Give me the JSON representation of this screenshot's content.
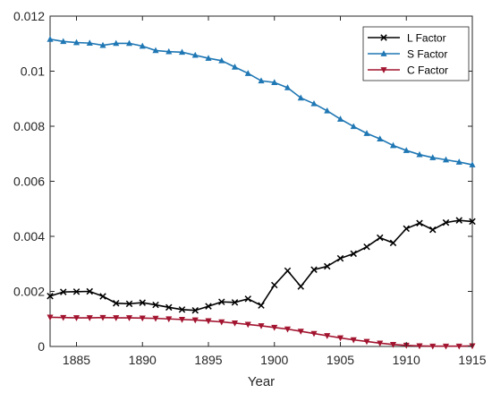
{
  "chart_data": {
    "type": "line",
    "title": "",
    "xlabel": "Year",
    "ylabel": "",
    "xlim": [
      1883,
      1915
    ],
    "ylim": [
      0,
      0.012
    ],
    "x_ticks": [
      1885,
      1890,
      1895,
      1900,
      1905,
      1910,
      1915
    ],
    "x_tick_labels": [
      "1885",
      "1890",
      "1895",
      "1900",
      "1905",
      "1910",
      "1915"
    ],
    "y_ticks": [
      0,
      0.002,
      0.004,
      0.006,
      0.008,
      0.01,
      0.012
    ],
    "y_tick_labels": [
      "0",
      "0.002",
      "0.004",
      "0.006",
      "0.008",
      "0.01",
      "0.012"
    ],
    "grid": false,
    "legend_position": "top-right",
    "x": [
      1883,
      1884,
      1885,
      1886,
      1887,
      1888,
      1889,
      1890,
      1891,
      1892,
      1893,
      1894,
      1895,
      1896,
      1897,
      1898,
      1899,
      1900,
      1901,
      1902,
      1903,
      1904,
      1905,
      1906,
      1907,
      1908,
      1909,
      1910,
      1911,
      1912,
      1913,
      1914,
      1915
    ],
    "series": [
      {
        "name": "L Factor",
        "color": "#000000",
        "marker": "x",
        "values": [
          0.00183,
          0.00198,
          0.00199,
          0.002,
          0.00182,
          0.00157,
          0.00155,
          0.00159,
          0.00151,
          0.00142,
          0.00134,
          0.00131,
          0.00146,
          0.00162,
          0.0016,
          0.00173,
          0.00149,
          0.00223,
          0.00275,
          0.00218,
          0.00279,
          0.00291,
          0.0032,
          0.00337,
          0.00362,
          0.00395,
          0.00376,
          0.00428,
          0.00448,
          0.00424,
          0.0045,
          0.00458,
          0.00454
        ]
      },
      {
        "name": "S Factor",
        "color": "#1f77b4",
        "marker": "triangle-up",
        "values": [
          0.01116,
          0.01108,
          0.01104,
          0.01102,
          0.01094,
          0.01101,
          0.01101,
          0.01091,
          0.01075,
          0.01071,
          0.01069,
          0.01058,
          0.01047,
          0.01038,
          0.01015,
          0.00992,
          0.00965,
          0.00959,
          0.0094,
          0.00903,
          0.00882,
          0.00856,
          0.00826,
          0.00799,
          0.00774,
          0.00754,
          0.0073,
          0.00712,
          0.00697,
          0.00686,
          0.00678,
          0.0067,
          0.0066
        ]
      },
      {
        "name": "C Factor",
        "color": "#a2142f",
        "marker": "triangle-down",
        "values": [
          0.00106,
          0.00105,
          0.00104,
          0.00104,
          0.00105,
          0.00104,
          0.00104,
          0.00103,
          0.00102,
          0.001,
          0.00098,
          0.00096,
          0.00093,
          0.00089,
          0.00085,
          0.0008,
          0.00075,
          0.00069,
          0.00063,
          0.00055,
          0.00047,
          0.00039,
          0.00031,
          0.00024,
          0.00018,
          0.00012,
          7e-05,
          4e-05,
          2e-05,
          1e-05,
          1e-05,
          1e-05,
          2e-05
        ]
      }
    ]
  }
}
